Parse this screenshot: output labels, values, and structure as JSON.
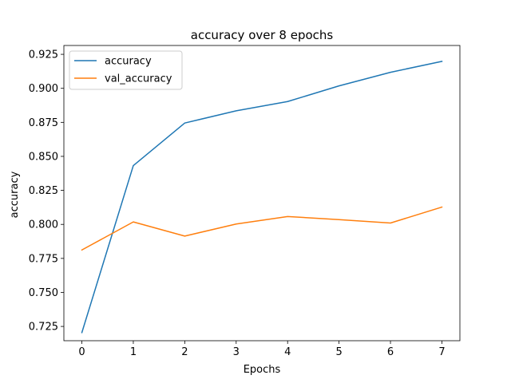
{
  "chart_data": {
    "type": "line",
    "title": "accuracy over 8 epochs",
    "xlabel": "Epochs",
    "ylabel": "accuracy",
    "x": [
      0,
      1,
      2,
      3,
      4,
      5,
      6,
      7
    ],
    "xticks": [
      "0",
      "1",
      "2",
      "3",
      "4",
      "5",
      "6",
      "7"
    ],
    "yticks": [
      "0.725",
      "0.750",
      "0.775",
      "0.800",
      "0.825",
      "0.850",
      "0.875",
      "0.900",
      "0.925"
    ],
    "xlim": [
      -0.35,
      7.35
    ],
    "ylim": [
      0.7145,
      0.9315
    ],
    "grid": false,
    "legend_position": "top-left",
    "series": [
      {
        "name": "accuracy",
        "color": "#1f77b4",
        "values": [
          0.7205,
          0.8432,
          0.8745,
          0.8835,
          0.8903,
          0.9018,
          0.9118,
          0.9198
        ]
      },
      {
        "name": "val_accuracy",
        "color": "#ff7f0e",
        "values": [
          0.7812,
          0.8018,
          0.7914,
          0.8003,
          0.8058,
          0.8035,
          0.801,
          0.8127
        ]
      }
    ]
  }
}
